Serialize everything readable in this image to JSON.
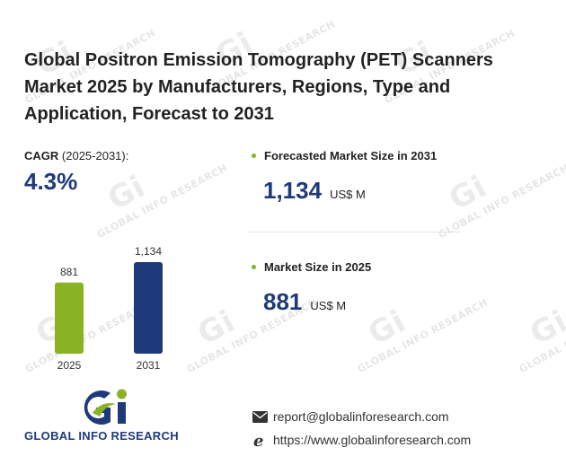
{
  "title": "Global Positron Emission Tomography (PET) Scanners Market 2025 by Manufacturers, Regions, Type and Application, Forecast to 2031",
  "cagr": {
    "label": "CAGR",
    "period": "(2025-2031):",
    "value": "4.3%"
  },
  "metrics": [
    {
      "label": "Forecasted Market Size in 2031",
      "value": "1,134",
      "unit": "US$ M"
    },
    {
      "label": "Market Size in 2025",
      "value": "881",
      "unit": "US$ M"
    }
  ],
  "chart_data": {
    "type": "bar",
    "categories": [
      "2025",
      "2031"
    ],
    "values": [
      881,
      1134
    ],
    "value_labels": [
      "881",
      "1,134"
    ],
    "colors": [
      "#8ab323",
      "#1f3a7a"
    ]
  },
  "logo": {
    "text": "GLOBAL INFO RESEARCH"
  },
  "contact": {
    "email": "report@globalinforesearch.com",
    "website": "https://www.globalinforesearch.com"
  },
  "watermark": {
    "text": "GLOBAL INFO RESEARCH",
    "mark": "Gi"
  },
  "colors": {
    "accent_green": "#8ab323",
    "brand_blue": "#1f3a7a"
  }
}
